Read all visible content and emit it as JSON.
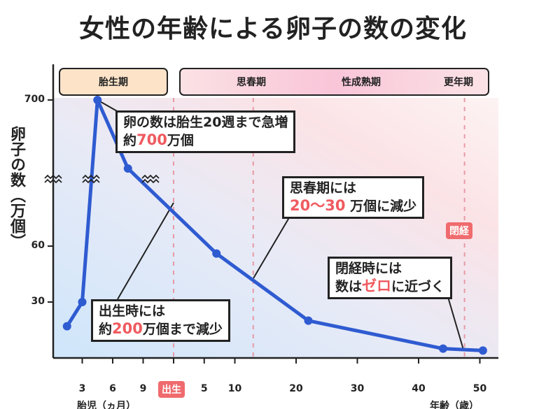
{
  "chart_data": {
    "type": "line",
    "title": "女性の年齢による卵子の数の変化",
    "ylabel": "卵子の数（万個）",
    "xlabel_fetal": "胎児（ヵ月）",
    "xlabel_age": "年齢（歳）",
    "birth_label": "出生",
    "y_ticks": [
      30,
      60,
      700
    ],
    "x_ticks_fetal_months": [
      3,
      6,
      9
    ],
    "x_ticks_age_years": [
      5,
      10,
      20,
      30,
      40,
      50
    ],
    "axis_break": true,
    "line_color": "#2f5bd1",
    "points": [
      {
        "phase": "fetal",
        "month": 1.5,
        "value": 17
      },
      {
        "phase": "fetal",
        "month": 3,
        "value": 30
      },
      {
        "phase": "fetal",
        "month": 4.5,
        "value": 700
      },
      {
        "phase": "fetal",
        "month": 7.5,
        "value": 400
      },
      {
        "phase": "age",
        "year": 7,
        "value": 56
      },
      {
        "phase": "age",
        "year": 22,
        "value": 20
      },
      {
        "phase": "age",
        "year": 44,
        "value": 5
      },
      {
        "phase": "age",
        "year": 50.5,
        "value": 4
      }
    ],
    "phases": [
      "胎生期",
      "思春期",
      "性成熟期",
      "更年期"
    ],
    "menopause_label": "閉経",
    "annotations": [
      {
        "line1": "卵の数は胎生20週まで急増",
        "pre": "約",
        "num": "700",
        "post": "万個"
      },
      {
        "line1": "思春期には",
        "pre": "",
        "num": "20〜30",
        "post": " 万個に減少"
      },
      {
        "line1": "出生時には",
        "pre": "約",
        "num": "200",
        "post": "万個まで減少"
      },
      {
        "line1": "閉経時には",
        "pre": "数は",
        "num": "ゼロ",
        "post": "に近づく"
      }
    ],
    "highlight_color": "#ef5a5f"
  }
}
